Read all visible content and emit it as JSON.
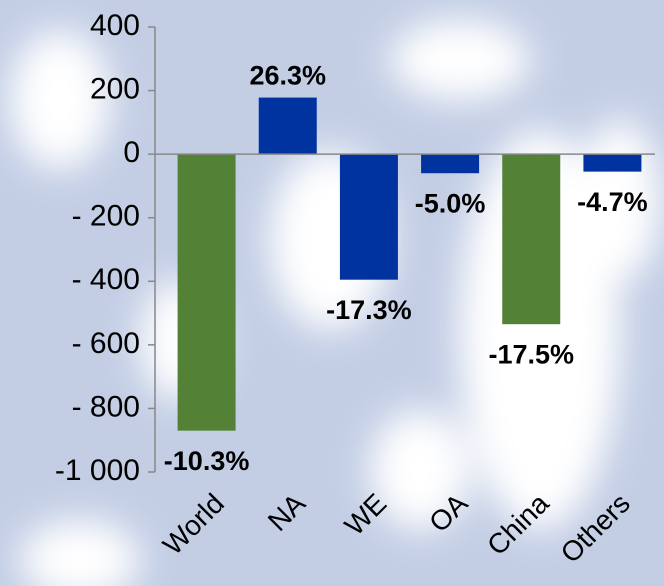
{
  "chart_data": {
    "type": "bar",
    "categories": [
      "World",
      "NA",
      "WE",
      "OA",
      "China",
      "Others"
    ],
    "values": [
      -870,
      178,
      -395,
      -60,
      -535,
      -55
    ],
    "annotations": [
      "-10.3%",
      "26.3%",
      "-17.3%",
      "-5.0%",
      "-17.5%",
      "-4.7%"
    ],
    "colors": [
      "#538135",
      "#0033a0",
      "#0033a0",
      "#0033a0",
      "#538135",
      "#0033a0"
    ],
    "ylim": [
      -1000,
      400
    ],
    "yticks": [
      400,
      200,
      0,
      {
        "value": -200,
        "label": "- 200"
      },
      {
        "value": -400,
        "label": "- 400"
      },
      {
        "value": -600,
        "label": "- 600"
      },
      {
        "value": -800,
        "label": "- 800"
      },
      {
        "value": -1000,
        "label": "-1 000"
      }
    ]
  }
}
